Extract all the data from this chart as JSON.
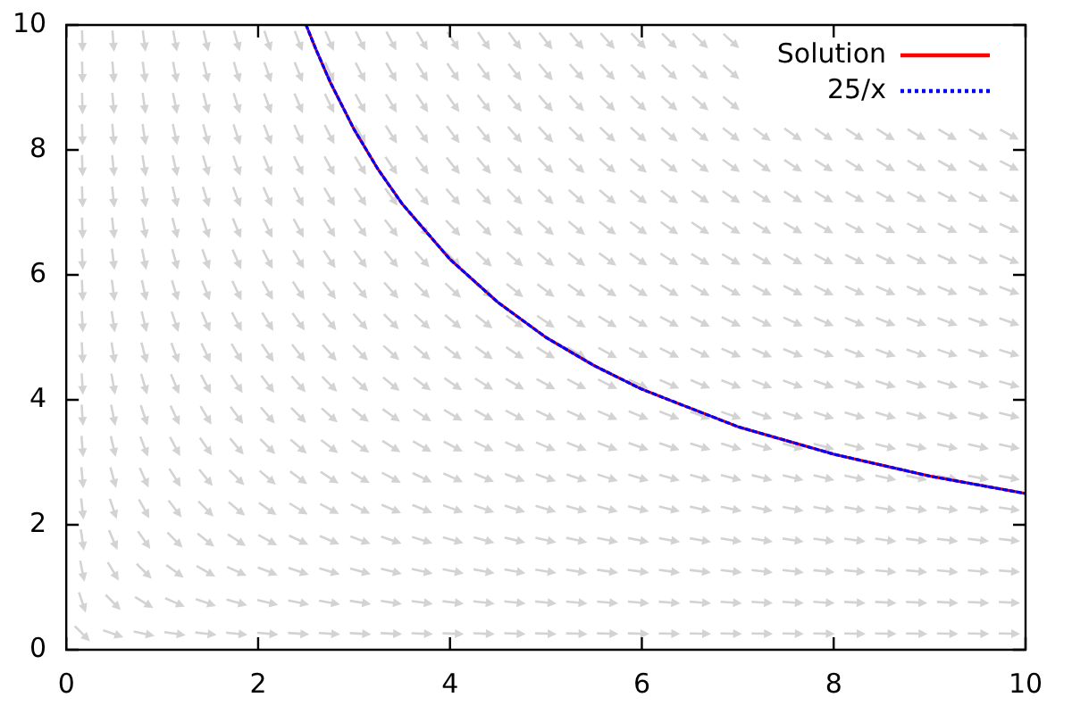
{
  "chart_data": {
    "type": "line",
    "xlim": [
      0,
      10
    ],
    "ylim": [
      0,
      10
    ],
    "xticks": [
      0,
      2,
      4,
      6,
      8,
      10
    ],
    "yticks": [
      0,
      2,
      4,
      6,
      8,
      10
    ],
    "grid": false,
    "legend": "top right",
    "marker": "none",
    "series": [
      {
        "name": "Solution",
        "color": "#ff0000",
        "line_style": "solid",
        "x": [
          2.5,
          2.6,
          2.75,
          3,
          3.25,
          3.5,
          4,
          4.5,
          5,
          5.5,
          6,
          7,
          8,
          9,
          10
        ],
        "values": [
          10,
          9.62,
          9.09,
          8.33,
          7.69,
          7.14,
          6.25,
          5.56,
          5,
          4.55,
          4.17,
          3.57,
          3.13,
          2.78,
          2.5
        ]
      },
      {
        "name": "25/x",
        "color": "#0000ff",
        "line_style": "dotted",
        "x": [
          2.5,
          2.6,
          2.75,
          3,
          3.25,
          3.5,
          4,
          4.5,
          5,
          5.5,
          6,
          7,
          8,
          9,
          10
        ],
        "values": [
          10,
          9.62,
          9.09,
          8.33,
          7.69,
          7.14,
          6.25,
          5.56,
          5,
          4.55,
          4.17,
          3.57,
          3.13,
          2.78,
          2.5
        ]
      }
    ]
  }
}
